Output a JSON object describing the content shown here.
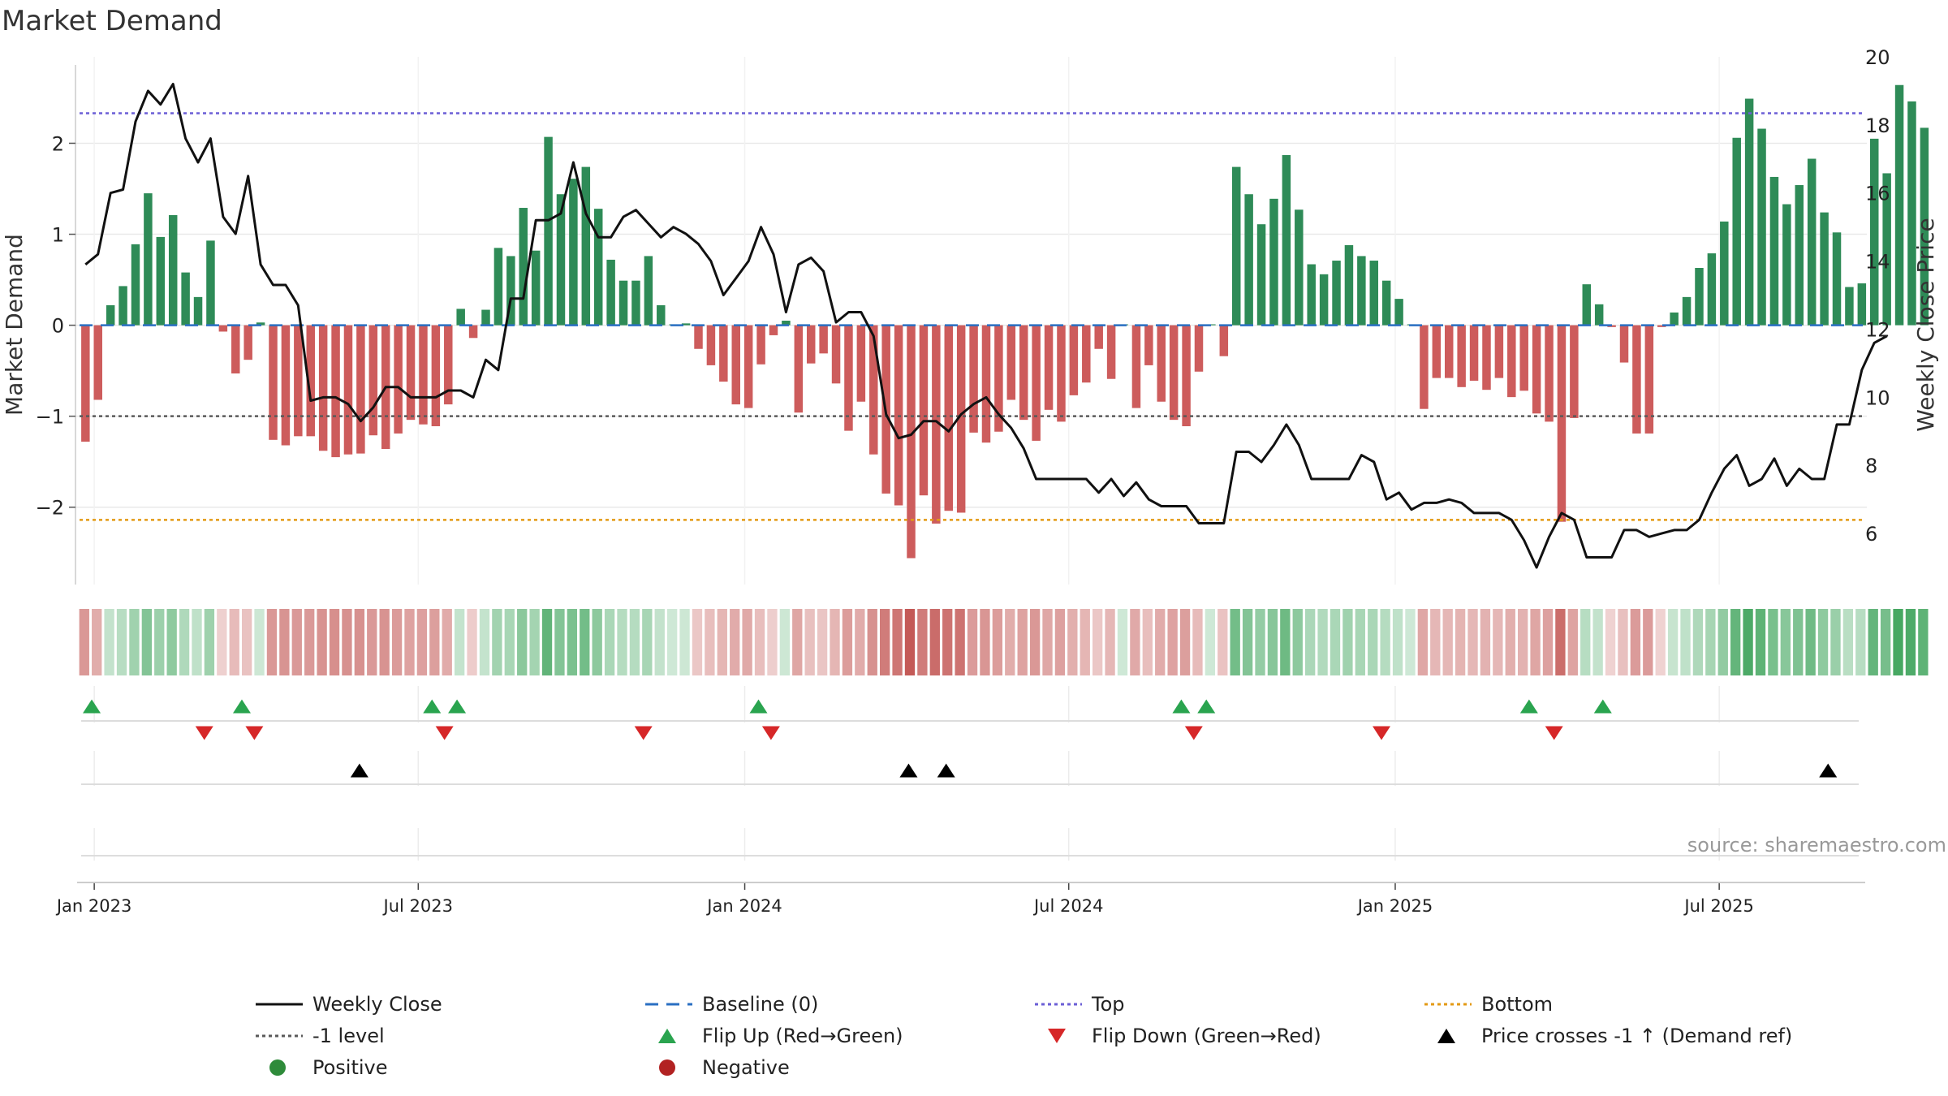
{
  "chart_data": {
    "type": "bar",
    "title": "Market Demand",
    "ylabel_left": "Market Demand",
    "ylabel_right": "Weekly Close Price",
    "ylim_left": [
      -2.85,
      2.95
    ],
    "ylim_right": [
      4.5,
      20.0
    ],
    "yticks_left": [
      -2,
      -1,
      0,
      1,
      2
    ],
    "yticks_left_labels": [
      "−2",
      "−1",
      "0",
      "1",
      "2"
    ],
    "yticks_right": [
      6,
      8,
      10,
      12,
      14,
      16,
      18,
      20
    ],
    "x_range_weeks": [
      -0.8,
      142.4
    ],
    "x_ticks": [
      {
        "week": 0.7,
        "label": "Jan 2023"
      },
      {
        "week": 26.6,
        "label": "Jul 2023"
      },
      {
        "week": 52.7,
        "label": "Jan 2024"
      },
      {
        "week": 78.6,
        "label": "Jul 2024"
      },
      {
        "week": 104.7,
        "label": "Jan 2025"
      },
      {
        "week": 130.6,
        "label": "Jul 2025"
      }
    ],
    "reference_lines": {
      "baseline": 0,
      "top": 2.33,
      "minus_one": -1.0,
      "bottom": -2.14
    },
    "demand": [
      -1.28,
      -0.82,
      0.22,
      0.43,
      0.89,
      1.45,
      0.97,
      1.21,
      0.58,
      0.31,
      0.93,
      -0.07,
      -0.53,
      -0.38,
      0.03,
      -1.26,
      -1.32,
      -1.22,
      -1.22,
      -1.38,
      -1.45,
      -1.42,
      -1.41,
      -1.21,
      -1.36,
      -1.19,
      -1.04,
      -1.09,
      -1.11,
      -0.87,
      0.18,
      -0.14,
      0.17,
      0.85,
      0.76,
      1.29,
      0.82,
      2.07,
      1.44,
      1.61,
      1.74,
      1.28,
      0.72,
      0.49,
      0.49,
      0.76,
      0.22,
      0.01,
      0.02,
      -0.26,
      -0.44,
      -0.62,
      -0.87,
      -0.91,
      -0.43,
      -0.11,
      0.05,
      -0.96,
      -0.42,
      -0.31,
      -0.64,
      -1.16,
      -0.84,
      -1.42,
      -1.85,
      -1.98,
      -2.56,
      -1.87,
      -2.18,
      -2.04,
      -2.06,
      -1.18,
      -1.29,
      -1.17,
      -0.82,
      -1.04,
      -1.27,
      -0.93,
      -1.06,
      -0.77,
      -0.63,
      -0.26,
      -0.59,
      0.01,
      -0.91,
      -0.44,
      -0.84,
      -1.04,
      -1.11,
      -0.51,
      0.01,
      -0.34,
      1.74,
      1.44,
      1.11,
      1.39,
      1.87,
      1.27,
      0.67,
      0.56,
      0.71,
      0.88,
      0.76,
      0.71,
      0.49,
      0.29,
      0.01,
      -0.92,
      -0.58,
      -0.58,
      -0.68,
      -0.61,
      -0.71,
      -0.58,
      -0.79,
      -0.72,
      -0.97,
      -1.06,
      -2.16,
      -1.02,
      0.45,
      0.23,
      -0.02,
      -0.41,
      -1.19,
      -1.19,
      -0.02,
      0.14,
      0.31,
      0.63,
      0.79,
      1.14,
      2.06,
      2.49,
      2.16,
      1.63,
      1.33,
      1.54,
      1.83,
      1.24,
      1.02,
      0.42,
      0.46,
      2.05,
      1.67,
      2.64,
      2.46,
      2.17
    ],
    "weekly_close": [
      13.9,
      14.2,
      16.0,
      16.1,
      18.1,
      19.0,
      18.6,
      19.2,
      17.6,
      16.9,
      17.6,
      15.3,
      14.8,
      16.5,
      13.9,
      13.3,
      13.3,
      12.7,
      9.9,
      10.0,
      10.0,
      9.8,
      9.3,
      9.7,
      10.3,
      10.3,
      10.0,
      10.0,
      10.0,
      10.2,
      10.2,
      10.0,
      11.1,
      10.8,
      12.9,
      12.9,
      15.2,
      15.2,
      15.4,
      16.9,
      15.4,
      14.7,
      14.7,
      15.3,
      15.5,
      15.1,
      14.7,
      15.0,
      14.8,
      14.5,
      14.0,
      13.0,
      13.5,
      14.0,
      15.0,
      14.2,
      12.5,
      13.9,
      14.1,
      13.7,
      12.2,
      12.5,
      12.5,
      11.8,
      9.5,
      8.8,
      8.9,
      9.3,
      9.3,
      9.0,
      9.5,
      9.8,
      10.0,
      9.5,
      9.1,
      8.5,
      7.6,
      7.6,
      7.6,
      7.6,
      7.6,
      7.2,
      7.6,
      7.1,
      7.5,
      7.0,
      6.8,
      6.8,
      6.8,
      6.3,
      6.3,
      6.3,
      8.4,
      8.4,
      8.1,
      8.6,
      9.2,
      8.6,
      7.6,
      7.6,
      7.6,
      7.6,
      8.3,
      8.1,
      7.0,
      7.2,
      6.7,
      6.9,
      6.9,
      7.0,
      6.9,
      6.6,
      6.6,
      6.6,
      6.4,
      5.8,
      5.0,
      5.9,
      6.6,
      6.4,
      5.3,
      5.3,
      5.3,
      6.1,
      6.1,
      5.9,
      6.0,
      6.1,
      6.1,
      6.4,
      7.2,
      7.9,
      8.3,
      7.4,
      7.6,
      8.2,
      7.4,
      7.9,
      7.6,
      7.6,
      9.2,
      9.2,
      10.8,
      11.6,
      11.8
    ],
    "heat_start_week": -0.5,
    "flip_up_weeks": [
      0.5,
      12.5,
      27.7,
      29.7,
      53.8,
      87.6,
      89.6,
      115.4,
      121.3
    ],
    "flip_down_weeks": [
      9.5,
      13.5,
      28.7,
      44.6,
      54.8,
      88.6,
      103.6,
      117.4
    ],
    "price_cross_weeks": [
      21.9,
      65.8,
      68.8,
      139.3
    ],
    "legend": [
      {
        "label": "Weekly Close",
        "marker": "solid-line",
        "color": "#111111"
      },
      {
        "label": "Baseline (0)",
        "marker": "dashed-line",
        "color": "#2a6fc2"
      },
      {
        "label": "Top",
        "marker": "dotted-line",
        "color": "#6b5fd6"
      },
      {
        "label": "Bottom",
        "marker": "dotted-line",
        "color": "#e39a14"
      },
      {
        "label": "-1 level",
        "marker": "dotted-line",
        "color": "#5a5a5a"
      },
      {
        "label": "Flip Up (Red→Green)",
        "marker": "triangle-up",
        "color": "#2aa44f"
      },
      {
        "label": "Flip Down (Green→Red)",
        "marker": "triangle-down",
        "color": "#d62728"
      },
      {
        "label": "Price crosses -1 ↑ (Demand ref)",
        "marker": "triangle-up",
        "color": "#000000"
      },
      {
        "label": "Positive",
        "marker": "circle",
        "color": "#2e8b3a"
      },
      {
        "label": "Negative",
        "marker": "circle",
        "color": "#b22222"
      }
    ],
    "source": "source: sharemaestro.com"
  },
  "colors": {
    "positive_bar": "#2e8b57",
    "negative_bar": "#cd5c5c",
    "heat_positive": "#3da35a",
    "heat_negative": "#c0504d",
    "grid": "#e9e9e9",
    "axis": "#cccccc",
    "text": "#333333"
  }
}
